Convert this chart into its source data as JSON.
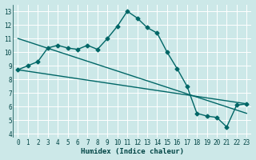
{
  "xlabel": "Humidex (Indice chaleur)",
  "background_color": "#cce8e8",
  "line_color": "#006666",
  "grid_color": "#b0d8d8",
  "xlim": [
    -0.5,
    23.5
  ],
  "ylim": [
    3.7,
    13.5
  ],
  "yticks": [
    4,
    5,
    6,
    7,
    8,
    9,
    10,
    11,
    12,
    13
  ],
  "xticks": [
    0,
    1,
    2,
    3,
    4,
    5,
    6,
    7,
    8,
    9,
    10,
    11,
    12,
    13,
    14,
    15,
    16,
    17,
    18,
    19,
    20,
    21,
    22,
    23
  ],
  "line1_x": [
    0,
    1,
    2,
    3,
    4,
    5,
    6,
    7,
    8,
    9,
    10,
    11,
    12,
    13,
    14,
    15,
    16,
    17,
    18,
    19,
    20,
    21,
    22,
    23
  ],
  "line1_y": [
    8.7,
    9.0,
    9.3,
    10.3,
    10.5,
    10.3,
    10.2,
    10.5,
    10.2,
    11.0,
    11.9,
    13.0,
    12.5,
    11.8,
    11.4,
    10.0,
    8.8,
    7.5,
    5.5,
    5.3,
    5.2,
    4.5,
    6.1,
    6.2
  ],
  "line2_x": [
    0,
    23
  ],
  "line2_y": [
    11.0,
    5.5
  ],
  "line3_x": [
    0,
    23
  ],
  "line3_y": [
    8.7,
    6.2
  ],
  "marker": "D",
  "marker_size": 2.5,
  "linewidth": 1.0
}
